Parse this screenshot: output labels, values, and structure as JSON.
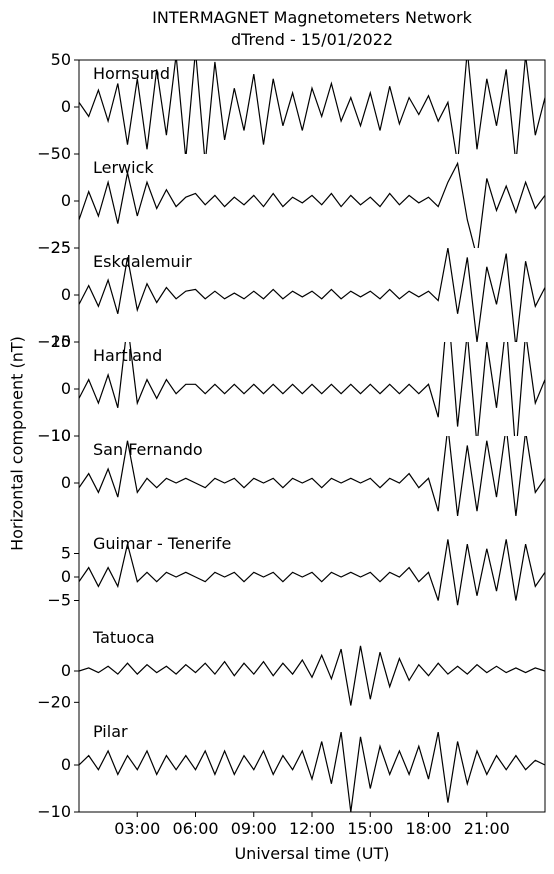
{
  "title": "INTERMAGNET Magnetometers Network",
  "subtitle": "dTrend - 15/01/2022",
  "chart_data": {
    "type": "line",
    "xlabel": "Universal time (UT)",
    "ylabel": "Horizontal component (nT)",
    "xlim": [
      0,
      24
    ],
    "x_ticks": [
      "03:00",
      "06:00",
      "09:00",
      "12:00",
      "15:00",
      "18:00",
      "21:00"
    ],
    "x_tick_hours": [
      3,
      6,
      9,
      12,
      15,
      18,
      21
    ],
    "line_color": "#000000",
    "panels": [
      {
        "name": "Hornsund",
        "ylim": [
          -50,
          50
        ],
        "yticks": [
          50,
          0,
          -50
        ],
        "ytick_labels": [
          "50",
          "0",
          "−50"
        ],
        "x": [
          0,
          0.5,
          1,
          1.5,
          2,
          2.5,
          3,
          3.5,
          4,
          4.5,
          5,
          5.5,
          6,
          6.5,
          7,
          7.5,
          8,
          8.5,
          9,
          9.5,
          10,
          10.5,
          11,
          11.5,
          12,
          12.5,
          13,
          13.5,
          14,
          14.5,
          15,
          15.5,
          16,
          16.5,
          17,
          17.5,
          18,
          18.5,
          19,
          19.5,
          20,
          20.5,
          21,
          21.5,
          22,
          22.5,
          23,
          23.5,
          24
        ],
        "y": [
          5,
          -10,
          18,
          -15,
          25,
          -40,
          30,
          -45,
          40,
          -30,
          55,
          -55,
          60,
          -60,
          48,
          -35,
          20,
          -25,
          35,
          -40,
          30,
          -20,
          15,
          -25,
          20,
          -10,
          25,
          -15,
          10,
          -20,
          15,
          -25,
          22,
          -18,
          10,
          -8,
          12,
          -15,
          5,
          -60,
          60,
          -45,
          30,
          -20,
          40,
          -60,
          55,
          -30,
          10
        ]
      },
      {
        "name": "Lerwick",
        "ylim": [
          -25,
          25
        ],
        "yticks": [
          0,
          -25
        ],
        "ytick_labels": [
          "0",
          "−25"
        ],
        "x": [
          0,
          0.5,
          1,
          1.5,
          2,
          2.5,
          3,
          3.5,
          4,
          4.5,
          5,
          5.5,
          6,
          6.5,
          7,
          7.5,
          8,
          8.5,
          9,
          9.5,
          10,
          10.5,
          11,
          11.5,
          12,
          12.5,
          13,
          13.5,
          14,
          14.5,
          15,
          15.5,
          16,
          16.5,
          17,
          17.5,
          18,
          18.5,
          19,
          19.5,
          20,
          20.5,
          21,
          21.5,
          22,
          22.5,
          23,
          23.5,
          24
        ],
        "y": [
          -10,
          5,
          -8,
          10,
          -12,
          15,
          -8,
          10,
          -4,
          6,
          -3,
          2,
          4,
          -2,
          3,
          -3,
          2,
          -2,
          3,
          -3,
          4,
          -3,
          2,
          -1,
          3,
          -2,
          4,
          -3,
          3,
          -2,
          2,
          -3,
          4,
          -2,
          3,
          -1,
          2,
          -3,
          10,
          20,
          -10,
          -30,
          12,
          -5,
          8,
          -6,
          10,
          -4,
          3
        ]
      },
      {
        "name": "Eskdalemuir",
        "ylim": [
          -25,
          25
        ],
        "yticks": [
          25,
          0,
          -25
        ],
        "ytick_labels": [
          "25",
          "0",
          "−25"
        ],
        "x": [
          0,
          0.5,
          1,
          1.5,
          2,
          2.5,
          3,
          3.5,
          4,
          4.5,
          5,
          5.5,
          6,
          6.5,
          7,
          7.5,
          8,
          8.5,
          9,
          9.5,
          10,
          10.5,
          11,
          11.5,
          12,
          12.5,
          13,
          13.5,
          14,
          14.5,
          15,
          15.5,
          16,
          16.5,
          17,
          17.5,
          18,
          18.5,
          19,
          19.5,
          20,
          20.5,
          21,
          21.5,
          22,
          22.5,
          23,
          23.5,
          24
        ],
        "y": [
          -5,
          5,
          -6,
          8,
          -10,
          20,
          -8,
          6,
          -4,
          4,
          -2,
          2,
          3,
          -2,
          2,
          -2,
          1,
          -2,
          2,
          -2,
          3,
          -2,
          2,
          -1,
          2,
          -2,
          3,
          -2,
          2,
          -1,
          2,
          -2,
          3,
          -2,
          2,
          -1,
          2,
          -3,
          25,
          -10,
          20,
          -25,
          15,
          -5,
          22,
          -28,
          18,
          -6,
          4
        ]
      },
      {
        "name": "Hartland",
        "ylim": [
          -10,
          10
        ],
        "yticks": [
          10,
          0,
          -10
        ],
        "ytick_labels": [
          "10",
          "0",
          "−10"
        ],
        "x": [
          0,
          0.5,
          1,
          1.5,
          2,
          2.5,
          3,
          3.5,
          4,
          4.5,
          5,
          5.5,
          6,
          6.5,
          7,
          7.5,
          8,
          8.5,
          9,
          9.5,
          10,
          10.5,
          11,
          11.5,
          12,
          12.5,
          13,
          13.5,
          14,
          14.5,
          15,
          15.5,
          16,
          16.5,
          17,
          17.5,
          18,
          18.5,
          19,
          19.5,
          20,
          20.5,
          21,
          21.5,
          22,
          22.5,
          23,
          23.5,
          24
        ],
        "y": [
          -2,
          2,
          -3,
          3,
          -4,
          14,
          -3,
          2,
          -2,
          2,
          -1,
          1,
          1,
          -1,
          1,
          -1,
          1,
          -1,
          1,
          -1,
          1,
          -1,
          1,
          -1,
          1,
          -1,
          1,
          -1,
          1,
          -1,
          1,
          -1,
          1,
          -1,
          1,
          -1,
          1,
          -6,
          18,
          -8,
          12,
          -12,
          10,
          -4,
          14,
          -14,
          12,
          -3,
          2
        ]
      },
      {
        "name": "San Fernando",
        "ylim": [
          -10,
          10
        ],
        "yticks": [
          10,
          0
        ],
        "ytick_labels": [
          "10",
          "0"
        ],
        "x": [
          0,
          0.5,
          1,
          1.5,
          2,
          2.5,
          3,
          3.5,
          4,
          4.5,
          5,
          5.5,
          6,
          6.5,
          7,
          7.5,
          8,
          8.5,
          9,
          9.5,
          10,
          10.5,
          11,
          11.5,
          12,
          12.5,
          13,
          13.5,
          14,
          14.5,
          15,
          15.5,
          16,
          16.5,
          17,
          17.5,
          18,
          18.5,
          19,
          19.5,
          20,
          20.5,
          21,
          21.5,
          22,
          22.5,
          23,
          23.5,
          24
        ],
        "y": [
          -1,
          2,
          -2,
          3,
          -3,
          9,
          -2,
          1,
          -1,
          1,
          0,
          1,
          0,
          -1,
          1,
          0,
          1,
          -1,
          1,
          0,
          1,
          -1,
          1,
          0,
          1,
          -1,
          1,
          0,
          1,
          0,
          1,
          -1,
          1,
          0,
          2,
          -1,
          1,
          -6,
          12,
          -7,
          8,
          -6,
          9,
          -3,
          12,
          -7,
          11,
          -2,
          1
        ]
      },
      {
        "name": "Guimar - Tenerife",
        "ylim": [
          -10,
          10
        ],
        "yticks": [
          5,
          0,
          -5
        ],
        "ytick_labels": [
          "5",
          "0",
          "−5"
        ],
        "x": [
          0,
          0.5,
          1,
          1.5,
          2,
          2.5,
          3,
          3.5,
          4,
          4.5,
          5,
          5.5,
          6,
          6.5,
          7,
          7.5,
          8,
          8.5,
          9,
          9.5,
          10,
          10.5,
          11,
          11.5,
          12,
          12.5,
          13,
          13.5,
          14,
          14.5,
          15,
          15.5,
          16,
          16.5,
          17,
          17.5,
          18,
          18.5,
          19,
          19.5,
          20,
          20.5,
          21,
          21.5,
          22,
          22.5,
          23,
          23.5,
          24
        ],
        "y": [
          -1,
          2,
          -2,
          2,
          -2,
          7,
          -1,
          1,
          -1,
          1,
          0,
          1,
          0,
          -1,
          1,
          0,
          1,
          -1,
          1,
          0,
          1,
          -1,
          1,
          0,
          1,
          -1,
          1,
          0,
          1,
          0,
          1,
          -1,
          1,
          0,
          2,
          -1,
          1,
          -5,
          8,
          -6,
          7,
          -4,
          6,
          -3,
          8,
          -5,
          7,
          -2,
          1
        ]
      },
      {
        "name": "Tatuoca",
        "ylim": [
          -30,
          30
        ],
        "yticks": [
          0,
          -20
        ],
        "ytick_labels": [
          "0",
          "−20"
        ],
        "x": [
          0,
          0.5,
          1,
          1.5,
          2,
          2.5,
          3,
          3.5,
          4,
          4.5,
          5,
          5.5,
          6,
          6.5,
          7,
          7.5,
          8,
          8.5,
          9,
          9.5,
          10,
          10.5,
          11,
          11.5,
          12,
          12.5,
          13,
          13.5,
          14,
          14.5,
          15,
          15.5,
          16,
          16.5,
          17,
          17.5,
          18,
          18.5,
          19,
          19.5,
          20,
          20.5,
          21,
          21.5,
          22,
          22.5,
          23,
          23.5,
          24
        ],
        "y": [
          0,
          2,
          -1,
          3,
          -2,
          5,
          -2,
          4,
          -1,
          3,
          -2,
          4,
          -1,
          5,
          -2,
          6,
          -3,
          5,
          -2,
          6,
          -3,
          5,
          -2,
          7,
          -4,
          10,
          -5,
          14,
          -22,
          16,
          -18,
          12,
          -10,
          8,
          -6,
          4,
          -3,
          5,
          -2,
          3,
          -2,
          4,
          -1,
          3,
          -1,
          2,
          -1,
          2,
          0
        ]
      },
      {
        "name": "Pilar",
        "ylim": [
          -10,
          10
        ],
        "yticks": [
          0,
          -10
        ],
        "ytick_labels": [
          "0",
          "−10"
        ],
        "x": [
          0,
          0.5,
          1,
          1.5,
          2,
          2.5,
          3,
          3.5,
          4,
          4.5,
          5,
          5.5,
          6,
          6.5,
          7,
          7.5,
          8,
          8.5,
          9,
          9.5,
          10,
          10.5,
          11,
          11.5,
          12,
          12.5,
          13,
          13.5,
          14,
          14.5,
          15,
          15.5,
          16,
          16.5,
          17,
          17.5,
          18,
          18.5,
          19,
          19.5,
          20,
          20.5,
          21,
          21.5,
          22,
          22.5,
          23,
          23.5,
          24
        ],
        "y": [
          0,
          2,
          -1,
          3,
          -2,
          2,
          -1,
          3,
          -2,
          2,
          -1,
          2,
          -1,
          3,
          -2,
          3,
          -2,
          2,
          -1,
          3,
          -2,
          2,
          -1,
          3,
          -3,
          5,
          -4,
          7,
          -10,
          6,
          -5,
          4,
          -2,
          3,
          -2,
          4,
          -3,
          7,
          -8,
          5,
          -4,
          3,
          -2,
          2,
          -1,
          2,
          -1,
          1,
          0
        ]
      }
    ]
  }
}
